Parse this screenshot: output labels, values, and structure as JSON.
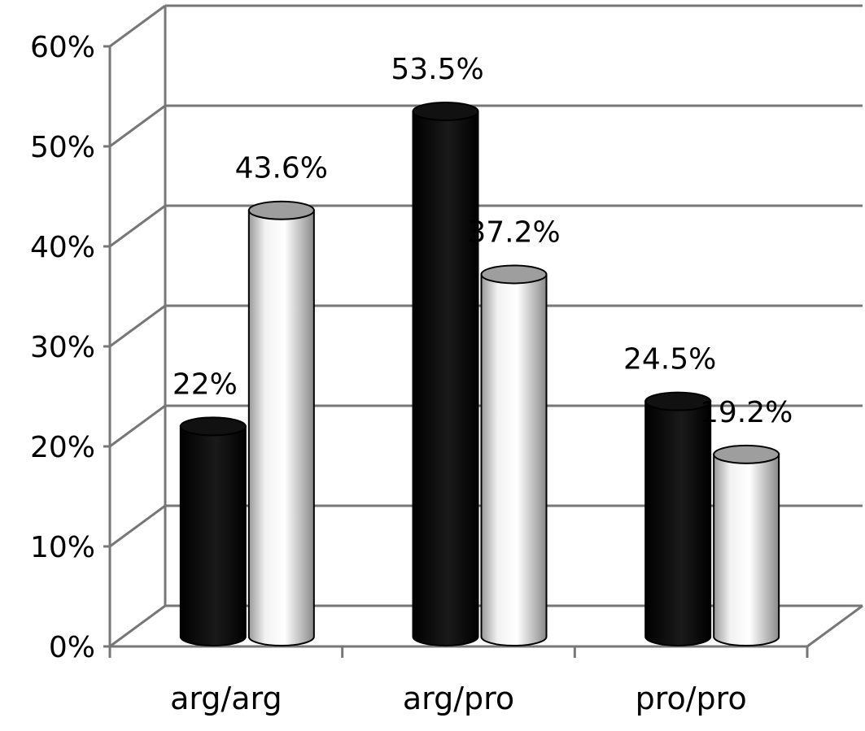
{
  "chart_data": {
    "type": "bar",
    "categories": [
      "arg/arg",
      "arg/pro",
      "pro/pro"
    ],
    "series": [
      {
        "values": [
          22,
          53.5,
          24.5
        ],
        "color": "#000000"
      },
      {
        "values": [
          43.6,
          37.2,
          19.2
        ],
        "color": "#ffffff"
      }
    ],
    "data_labels": [
      [
        "22%",
        "53.5%",
        "24.5%"
      ],
      [
        "43.6%",
        "37.2%",
        "19.2%"
      ]
    ],
    "y_ticks": [
      "0%",
      "10%",
      "20%",
      "30%",
      "40%",
      "50%",
      "60%"
    ],
    "ylim": [
      0,
      60
    ],
    "grid": true,
    "style": "3d-cylinder",
    "legend": "none"
  }
}
